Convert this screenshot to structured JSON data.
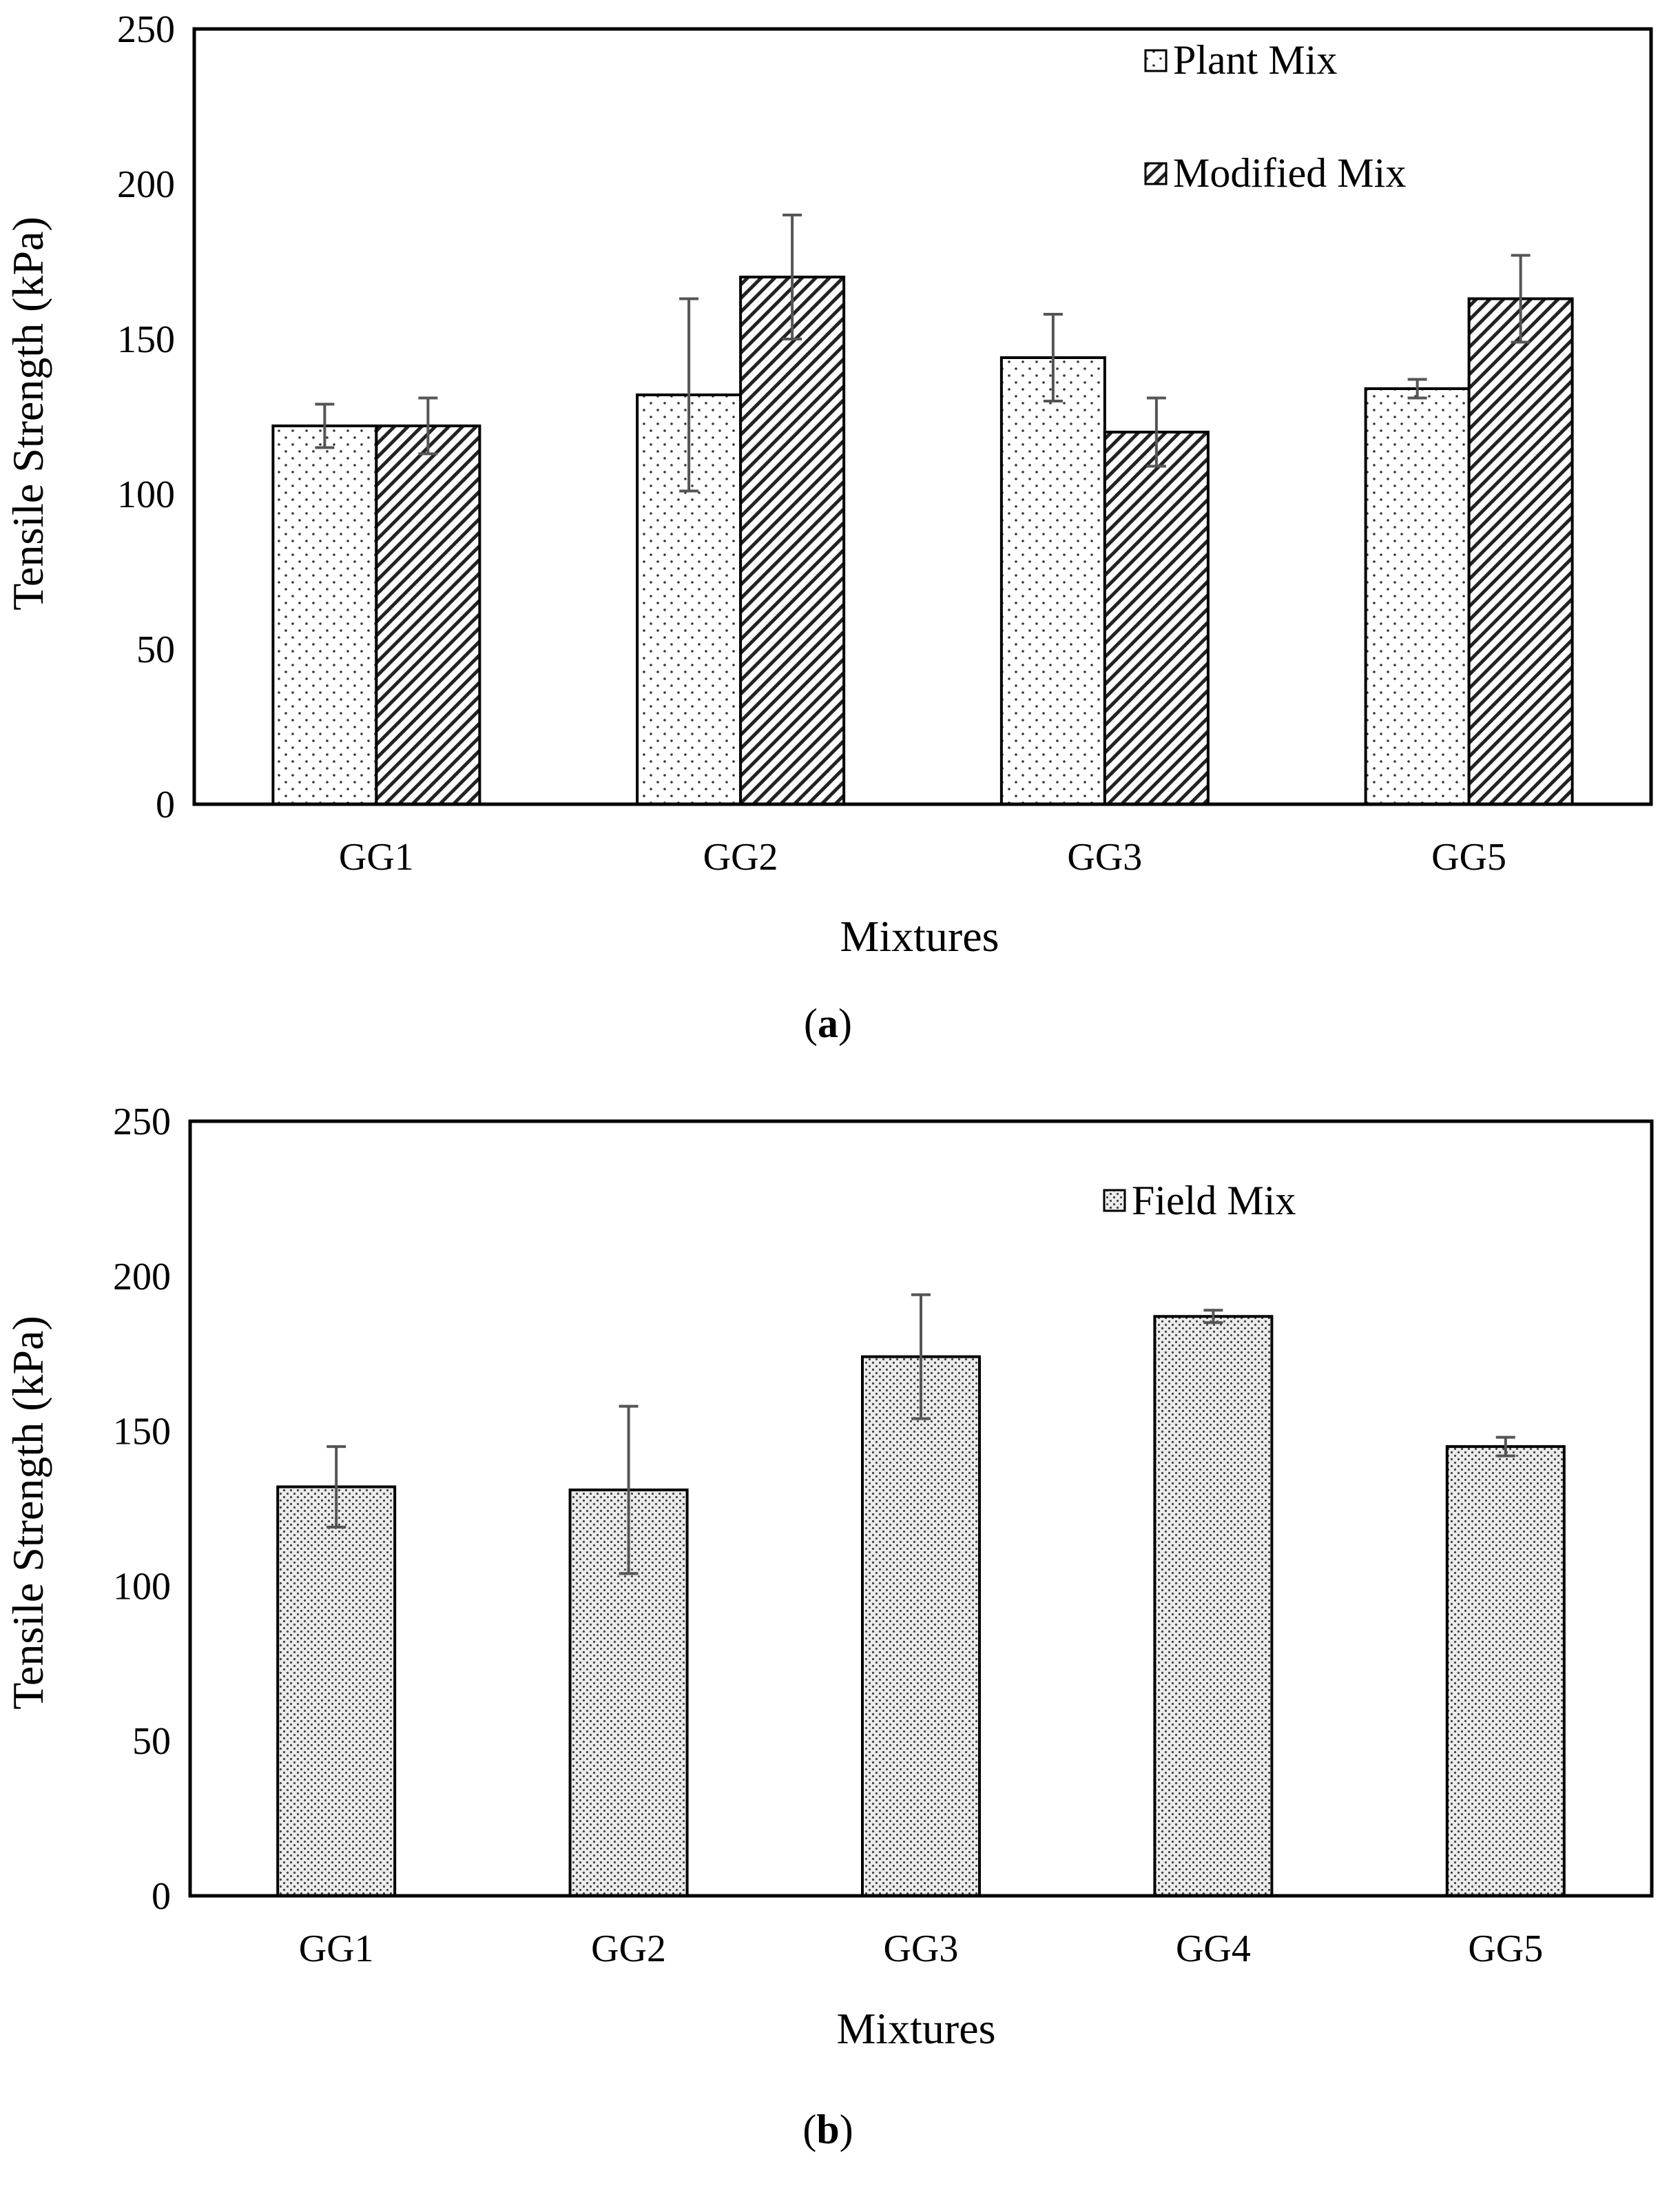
{
  "chart_data": [
    {
      "type": "bar",
      "panel_label": "a",
      "ylabel": "Tensile Strength (kPa)",
      "xlabel": "Mixtures",
      "ylim": [
        0,
        250
      ],
      "yticks": [
        0,
        50,
        100,
        150,
        200,
        250
      ],
      "categories": [
        "GG1",
        "GG2",
        "GG3",
        "GG5"
      ],
      "legend_position": "top-right",
      "series": [
        {
          "name": "Plant Mix",
          "pattern": "dots",
          "values": [
            122,
            132,
            144,
            134
          ],
          "error": [
            7,
            31,
            14,
            3
          ]
        },
        {
          "name": "Modified Mix",
          "pattern": "hatch",
          "values": [
            122,
            170,
            120,
            163
          ],
          "error": [
            9,
            20,
            11,
            14
          ]
        }
      ]
    },
    {
      "type": "bar",
      "panel_label": "b",
      "ylabel": "Tensile Strength (kPa)",
      "xlabel": "Mixtures",
      "ylim": [
        0,
        250
      ],
      "yticks": [
        0,
        50,
        100,
        150,
        200,
        250
      ],
      "categories": [
        "GG1",
        "GG2",
        "GG3",
        "GG4",
        "GG5"
      ],
      "legend_position": "top-right",
      "series": [
        {
          "name": "Field Mix",
          "pattern": "fine-dots",
          "values": [
            132,
            131,
            174,
            187,
            145
          ],
          "error": [
            13,
            27,
            20,
            2,
            3
          ]
        }
      ]
    }
  ],
  "captions": {
    "a": {
      "open": "(",
      "letter": "a",
      "close": ")"
    },
    "b": {
      "open": "(",
      "letter": "b",
      "close": ")"
    }
  }
}
